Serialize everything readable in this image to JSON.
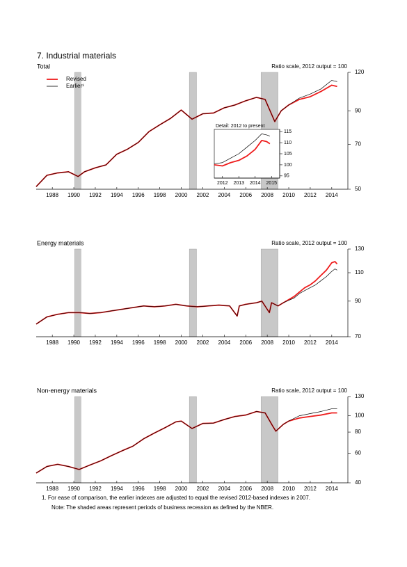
{
  "title": "7. Industrial materials",
  "chart_data": [
    {
      "type": "line",
      "title": "Total",
      "scale_note": "Ratio scale, 2012 output = 100",
      "log_scale": true,
      "legend": "upper left",
      "xlim": [
        1987,
        2016
      ],
      "ylim": [
        50,
        120
      ],
      "yticks": [
        50,
        70,
        90,
        120
      ],
      "xticks": [
        {
          "value": 1988.5,
          "label": "1988"
        },
        {
          "value": 1990.5,
          "label": "1990"
        },
        {
          "value": 1992.5,
          "label": "1992"
        },
        {
          "value": 1994.5,
          "label": "1994"
        },
        {
          "value": 1996.5,
          "label": "1996"
        },
        {
          "value": 1998.5,
          "label": "1998"
        },
        {
          "value": 2000.5,
          "label": "2000"
        },
        {
          "value": 2002.5,
          "label": "2002"
        },
        {
          "value": 2004.5,
          "label": "2004"
        },
        {
          "value": 2006.5,
          "label": "2006"
        },
        {
          "value": 2008.5,
          "label": "2008"
        },
        {
          "value": 2010.5,
          "label": "2010"
        },
        {
          "value": 2012.5,
          "label": "2012"
        },
        {
          "value": 2014.5,
          "label": "2014"
        }
      ],
      "recessions": [
        [
          1990.58,
          1991.17
        ],
        [
          2001.25,
          2001.92
        ],
        [
          2007.92,
          2009.5
        ]
      ],
      "x": [
        1987,
        1988,
        1989,
        1990,
        1990.9,
        1991.5,
        1992.5,
        1993.5,
        1994.5,
        1995.5,
        1996.5,
        1997.5,
        1998.5,
        1999.5,
        2000.5,
        2001.5,
        2002.5,
        2003.5,
        2004.5,
        2005.5,
        2006.5,
        2007.5,
        2008.3,
        2009.2,
        2009.8,
        2010.5,
        2011.5,
        2012.5,
        2013.5,
        2014.5,
        2015.0
      ],
      "series": [
        {
          "name": "Revised",
          "color": "#ee1c1c",
          "values": [
            51,
            55.5,
            56.5,
            57,
            55,
            57,
            58.7,
            60,
            65,
            67.5,
            71,
            77,
            81,
            85,
            90.5,
            84.5,
            88,
            88.5,
            92,
            94,
            97,
            99.5,
            98,
            83,
            90,
            94,
            98,
            100,
            104,
            109,
            108
          ]
        },
        {
          "name": "Earlier¹",
          "color": "#000000",
          "values": [
            51,
            55.5,
            56.5,
            57,
            55,
            57,
            58.7,
            60,
            65,
            67.5,
            71,
            77,
            81,
            85,
            90.5,
            84.5,
            88,
            88.5,
            92,
            94,
            97,
            99.5,
            98,
            83,
            90,
            94,
            99,
            102,
            106,
            113,
            112
          ]
        }
      ]
    },
    {
      "type": "line",
      "title": "Energy materials",
      "scale_note": "Ratio scale, 2012 output = 100",
      "log_scale": true,
      "xlim": [
        1987,
        2016
      ],
      "ylim": [
        70,
        130
      ],
      "yticks": [
        70,
        90,
        110,
        130
      ],
      "xticks": [
        {
          "value": 1988.5,
          "label": "1988"
        },
        {
          "value": 1990.5,
          "label": "1990"
        },
        {
          "value": 1992.5,
          "label": "1992"
        },
        {
          "value": 1994.5,
          "label": "1994"
        },
        {
          "value": 1996.5,
          "label": "1996"
        },
        {
          "value": 1998.5,
          "label": "1998"
        },
        {
          "value": 2000.5,
          "label": "2000"
        },
        {
          "value": 2002.5,
          "label": "2002"
        },
        {
          "value": 2004.5,
          "label": "2004"
        },
        {
          "value": 2006.5,
          "label": "2006"
        },
        {
          "value": 2008.5,
          "label": "2008"
        },
        {
          "value": 2010.5,
          "label": "2010"
        },
        {
          "value": 2012.5,
          "label": "2012"
        },
        {
          "value": 2014.5,
          "label": "2014"
        }
      ],
      "recessions": [
        [
          1990.58,
          1991.17
        ],
        [
          2001.25,
          2001.92
        ],
        [
          2007.92,
          2009.5
        ]
      ],
      "x": [
        1987,
        1988,
        1989,
        1990,
        1991,
        1992,
        1993,
        1994,
        1995,
        1996,
        1997,
        1998,
        1999,
        2000,
        2001,
        2002,
        2003,
        2004,
        2005,
        2005.7,
        2005.9,
        2006.5,
        2007.5,
        2008.0,
        2008.7,
        2008.9,
        2009.5,
        2010,
        2010.5,
        2011,
        2011.5,
        2012,
        2012.5,
        2013,
        2013.5,
        2014,
        2014.5,
        2014.8,
        2015
      ],
      "series": [
        {
          "color": "#ee1c1c",
          "values": [
            76.5,
            80.5,
            82,
            83,
            83,
            82.5,
            83,
            84,
            85,
            86,
            87,
            86.5,
            87,
            88,
            87,
            86.5,
            87,
            87.5,
            87,
            81,
            87,
            88,
            89,
            90,
            83,
            89,
            87,
            89,
            91,
            93,
            96,
            99,
            101,
            104,
            108,
            112,
            118,
            119,
            117
          ]
        },
        {
          "color": "#000000",
          "values": [
            76.5,
            80.5,
            82,
            83,
            83,
            82.5,
            83,
            84,
            85,
            86,
            87,
            86.5,
            87,
            88,
            87,
            86.5,
            87,
            87.5,
            87,
            81,
            87,
            88,
            89,
            90,
            83,
            89,
            87,
            89,
            90.5,
            92,
            95,
            97,
            99,
            101,
            104,
            107,
            111,
            113,
            112
          ]
        }
      ]
    },
    {
      "type": "line",
      "title": "Non-energy materials",
      "scale_note": "Ratio scale, 2012 output = 100",
      "log_scale": true,
      "xlim": [
        1987,
        2016
      ],
      "ylim": [
        40,
        130
      ],
      "yticks": [
        40,
        60,
        80,
        100,
        130
      ],
      "xticks": [
        {
          "value": 1988.5,
          "label": "1988"
        },
        {
          "value": 1990.5,
          "label": "1990"
        },
        {
          "value": 1992.5,
          "label": "1992"
        },
        {
          "value": 1994.5,
          "label": "1994"
        },
        {
          "value": 1996.5,
          "label": "1996"
        },
        {
          "value": 1998.5,
          "label": "1998"
        },
        {
          "value": 2000.5,
          "label": "2000"
        },
        {
          "value": 2002.5,
          "label": "2002"
        },
        {
          "value": 2004.5,
          "label": "2004"
        },
        {
          "value": 2006.5,
          "label": "2006"
        },
        {
          "value": 2008.5,
          "label": "2008"
        },
        {
          "value": 2010.5,
          "label": "2010"
        },
        {
          "value": 2012.5,
          "label": "2012"
        },
        {
          "value": 2014.5,
          "label": "2014"
        }
      ],
      "recessions": [
        [
          1990.58,
          1991.17
        ],
        [
          2001.25,
          2001.92
        ],
        [
          2007.92,
          2009.5
        ]
      ],
      "x": [
        1987,
        1988,
        1989,
        1990,
        1991,
        1992,
        1993,
        1994,
        1995,
        1996,
        1997,
        1998,
        1999,
        2000,
        2000.5,
        2001.5,
        2002.5,
        2003.5,
        2004.5,
        2005.5,
        2006.5,
        2007.5,
        2008.3,
        2009.0,
        2009.3,
        2010,
        2010.5,
        2011.5,
        2012.5,
        2013.5,
        2014.5,
        2015
      ],
      "series": [
        {
          "color": "#ee1c1c",
          "values": [
            45.7,
            50,
            51.5,
            50,
            48,
            51,
            54,
            58,
            62,
            66,
            73,
            79,
            85,
            92,
            93,
            84,
            90,
            90.5,
            95,
            99,
            101,
            106,
            104,
            87,
            81,
            89,
            93,
            97,
            99,
            101,
            104,
            104
          ]
        },
        {
          "color": "#000000",
          "values": [
            45.7,
            50,
            51.5,
            50,
            48,
            51,
            54,
            58,
            62,
            66,
            73,
            79,
            85,
            92,
            93,
            84,
            90,
            90.5,
            95,
            99,
            101,
            106,
            104,
            87,
            81,
            89,
            93,
            100,
            103,
            106,
            110,
            110
          ]
        }
      ]
    },
    {
      "type": "line",
      "title": "Detail: 2012 to present",
      "log_scale": false,
      "inset": true,
      "xlim": [
        2012,
        2016
      ],
      "ylim": [
        94,
        116
      ],
      "yticks": [
        95,
        100,
        105,
        110,
        115
      ],
      "xticks": [
        {
          "value": 2012.5,
          "label": "2012"
        },
        {
          "value": 2013.5,
          "label": "2013"
        },
        {
          "value": 2014.5,
          "label": "2014"
        },
        {
          "value": 2015.5,
          "label": "2015"
        }
      ],
      "x": [
        2012,
        2012.5,
        2013,
        2013.5,
        2014,
        2014.5,
        2014.9,
        2015.2,
        2015.4
      ],
      "series": [
        {
          "color": "#ee1c1c",
          "values": [
            100,
            99.5,
            101,
            102,
            104,
            107,
            111,
            110.5,
            109.5
          ]
        },
        {
          "color": "#000000",
          "values": [
            100.5,
            101,
            103,
            105,
            108,
            111,
            114,
            113.5,
            113
          ]
        }
      ]
    }
  ],
  "footnotes": [
    "1. For ease of comparison, the earlier indexes are adjusted to equal the revised 2012-based indexes in 2007.",
    "Note: The shaded areas represent periods of business recession as defined by the NBER."
  ]
}
